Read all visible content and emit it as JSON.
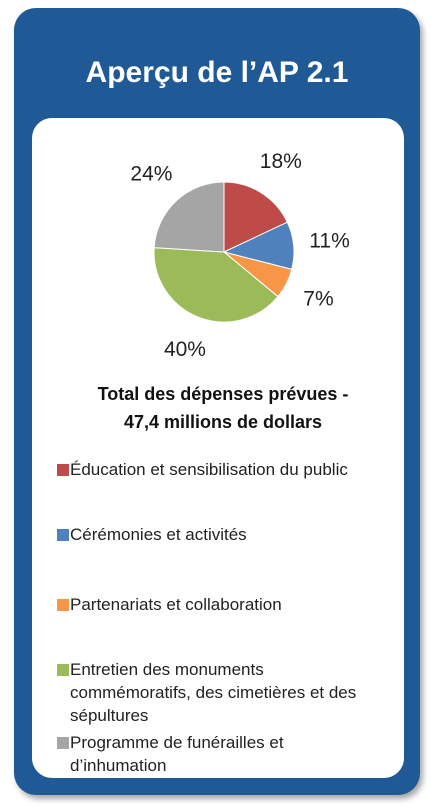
{
  "chart_data": {
    "type": "pie",
    "title": "Aperçu de l’AP 2.1",
    "subtitle": "Total des dépenses prévues - 47,4 millions de dollars",
    "categories": [
      "Éducation et sensibilisation du public",
      "Cérémonies et activités",
      "Partenariats et collaboration",
      "Entretien des monuments commémoratifs, des cimetières et des sépultures",
      "Programme de funérailles et d’inhumation"
    ],
    "values": [
      18,
      11,
      7,
      40,
      24
    ],
    "value_labels": [
      "18%",
      "11%",
      "7%",
      "40%",
      "24%"
    ],
    "colors": [
      "#be4b48",
      "#4f81bd",
      "#f79646",
      "#9bbb59",
      "#a5a5a5"
    ],
    "legend": "bottom"
  }
}
